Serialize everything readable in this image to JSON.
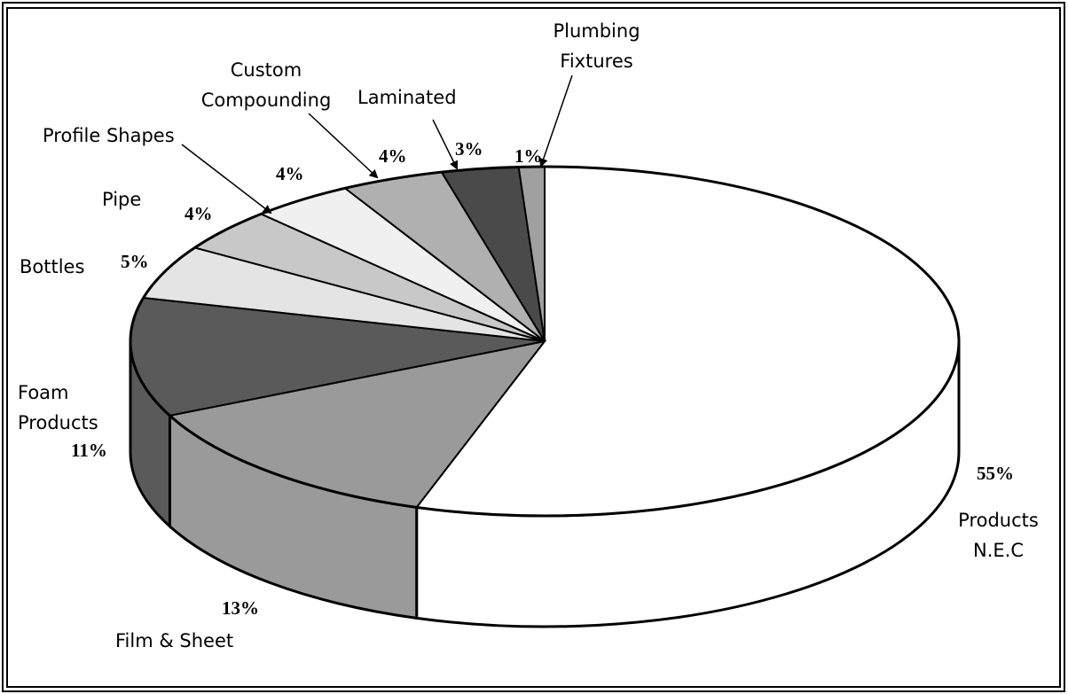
{
  "chart_data": {
    "type": "pie3d",
    "categories": [
      "Products N.E.C",
      "Film & Sheet",
      "Foam Products",
      "Bottles",
      "Pipe",
      "Profile Shapes",
      "Custom Compounding",
      "Laminated",
      "Plumbing Fixtures"
    ],
    "values": [
      55,
      13,
      11,
      5,
      4,
      4,
      4,
      3,
      1
    ],
    "value_labels": [
      "55%",
      "13%",
      "11%",
      "5%",
      "4%",
      "4%",
      "4%",
      "3%",
      "1%"
    ],
    "colors": [
      "#ffffff",
      "#9a9a9a",
      "#5a5a5a",
      "#e4e4e4",
      "#c8c8c8",
      "#f0f0f0",
      "#b0b0b0",
      "#4a4a4a",
      "#a0a0a0"
    ]
  }
}
